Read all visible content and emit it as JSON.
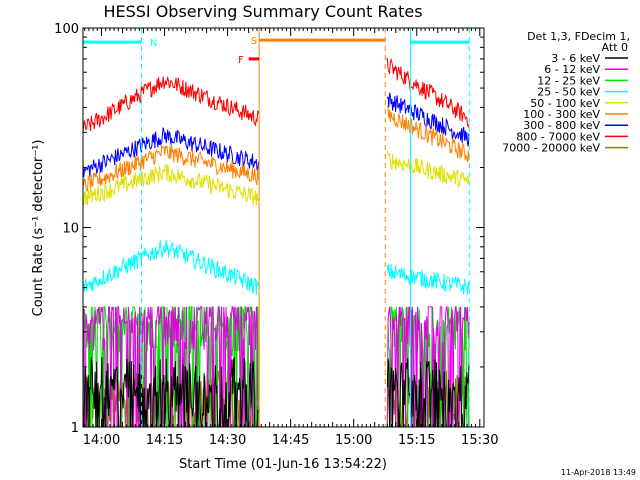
{
  "chart_data": {
    "type": "line",
    "title": "HESSI Observing Summary Count Rates",
    "xlabel": "Start Time (01-Jun-16 13:54:22)",
    "ylabel": "Count Rate (s⁻¹ detector⁻¹)",
    "yscale": "log",
    "ylim": [
      1,
      100
    ],
    "xlim_minutes": [
      -4.4,
      91
    ],
    "x_ticks": [
      {
        "label": "14:00",
        "minute": 0
      },
      {
        "label": "14:15",
        "minute": 15
      },
      {
        "label": "14:30",
        "minute": 30
      },
      {
        "label": "14:45",
        "minute": 45
      },
      {
        "label": "15:00",
        "minute": 60
      },
      {
        "label": "15:15",
        "minute": 75
      },
      {
        "label": "15:30",
        "minute": 90
      }
    ],
    "y_ticks": [
      {
        "label": "1",
        "value": 1
      },
      {
        "label": "10",
        "value": 10
      },
      {
        "label": "100",
        "value": 100
      }
    ],
    "legend_position": "right",
    "legend_header": [
      "Det 1,3, FDecim 1,",
      "Att 0"
    ],
    "segments": [
      [
        -4.4,
        37.5
      ],
      [
        68.0,
        87.5
      ]
    ],
    "series": [
      {
        "name": "3 - 6 keV",
        "color": "#000000",
        "values": [
          [
            -4.4,
            1.4
          ],
          [
            37.5,
            1.4
          ],
          [
            68.0,
            1.4
          ],
          [
            87.5,
            1.4
          ]
        ]
      },
      {
        "name": "6 - 12 keV",
        "color": "#e000e0",
        "values": [
          [
            -4.4,
            3.0
          ],
          [
            37.5,
            3.0
          ],
          [
            68.0,
            3.0
          ],
          [
            87.5,
            3.0
          ]
        ]
      },
      {
        "name": "12 - 25 keV",
        "color": "#00e000",
        "values": [
          [
            -4.4,
            2.8
          ],
          [
            37.5,
            2.8
          ],
          [
            68.0,
            2.8
          ],
          [
            87.5,
            2.8
          ]
        ]
      },
      {
        "name": "25 - 50 keV",
        "color": "#00ffff",
        "values": [
          [
            -4.4,
            5.0
          ],
          [
            15.0,
            8.0
          ],
          [
            37.5,
            5.0
          ],
          [
            68.0,
            6.0
          ],
          [
            87.5,
            5.0
          ]
        ]
      },
      {
        "name": "50 - 100 keV",
        "color": "#e0e000",
        "values": [
          [
            -4.4,
            14.0
          ],
          [
            15.0,
            19.0
          ],
          [
            37.5,
            14.0
          ],
          [
            68.0,
            22.0
          ],
          [
            87.5,
            17.0
          ]
        ]
      },
      {
        "name": "100 - 300 keV",
        "color": "#ff8000",
        "values": [
          [
            -4.4,
            16.0
          ],
          [
            15.0,
            24.0
          ],
          [
            37.5,
            18.0
          ],
          [
            68.0,
            37.0
          ],
          [
            87.5,
            23.0
          ]
        ]
      },
      {
        "name": "300 - 800 keV",
        "color": "#0000ff",
        "values": [
          [
            -4.4,
            19.0
          ],
          [
            15.0,
            29.0
          ],
          [
            37.5,
            21.0
          ],
          [
            68.0,
            44.0
          ],
          [
            87.5,
            28.0
          ]
        ]
      },
      {
        "name": "800 - 7000 keV",
        "color": "#ff0000",
        "values": [
          [
            -4.4,
            31.0
          ],
          [
            15.0,
            55.0
          ],
          [
            37.5,
            35.0
          ],
          [
            68.0,
            65.0
          ],
          [
            87.5,
            35.0
          ]
        ]
      },
      {
        "name": "7000 - 20000 keV",
        "color": "#808000",
        "values": [
          [
            -4.4,
            1.2
          ],
          [
            37.5,
            1.2
          ],
          [
            68.0,
            1.2
          ],
          [
            87.5,
            1.2
          ]
        ]
      }
    ],
    "flag_bars": [
      {
        "label": "N",
        "color": "#00ffff",
        "intervals": [
          [
            -4.4,
            9.5
          ],
          [
            73.5,
            87.5
          ]
        ],
        "level": 85,
        "label_at": 11.5
      },
      {
        "label": "S",
        "color": "#ff8000",
        "intervals": [
          [
            37.5,
            67.5
          ]
        ],
        "level": 87,
        "label_at": 35.5
      },
      {
        "label": "F",
        "color": "#ff0000",
        "intervals": [
          [
            35.0,
            37.5
          ]
        ],
        "level": 70,
        "label_at": 32.5
      }
    ],
    "vlines": [
      {
        "minute": 9.5,
        "color": "#00ffff",
        "style": "dashed"
      },
      {
        "minute": 87.5,
        "color": "#00ffff",
        "style": "dashed"
      },
      {
        "minute": 37.5,
        "color": "#ff8000",
        "style": "solid"
      },
      {
        "minute": 67.5,
        "color": "#ff8000",
        "style": "dashed"
      },
      {
        "minute": 73.5,
        "color": "#00ffff",
        "style": "solid"
      }
    ]
  },
  "footer": {
    "date": "11-Apr-2018 13:49"
  }
}
